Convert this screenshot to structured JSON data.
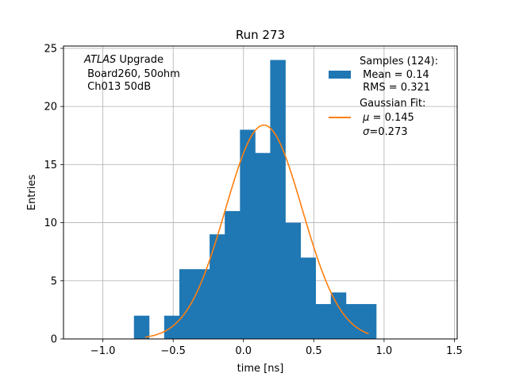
{
  "chart_data": {
    "type": "bar",
    "title": "Run 273",
    "xlabel": "time [ns]",
    "ylabel": "Entries",
    "xlim": [
      -1.28,
      1.52
    ],
    "ylim": [
      0,
      25.2
    ],
    "grid": true,
    "xticks": [
      -1.0,
      -0.5,
      0.0,
      0.5,
      1.0,
      1.5
    ],
    "xtick_labels": [
      "−1.0",
      "−0.5",
      "0.0",
      "0.5",
      "1.0",
      "1.5"
    ],
    "yticks": [
      0,
      5,
      10,
      15,
      20,
      25
    ],
    "ytick_labels": [
      "0",
      "5",
      "10",
      "15",
      "20",
      "25"
    ],
    "bin_width": 0.1077,
    "bins": [
      {
        "left": -0.779,
        "count": 2
      },
      {
        "left": -0.564,
        "count": 2
      },
      {
        "left": -0.456,
        "count": 6
      },
      {
        "left": -0.348,
        "count": 6
      },
      {
        "left": -0.241,
        "count": 9
      },
      {
        "left": -0.133,
        "count": 11
      },
      {
        "left": -0.025,
        "count": 18
      },
      {
        "left": 0.082,
        "count": 16
      },
      {
        "left": 0.19,
        "count": 24
      },
      {
        "left": 0.298,
        "count": 10
      },
      {
        "left": 0.405,
        "count": 7
      },
      {
        "left": 0.513,
        "count": 3
      },
      {
        "left": 0.621,
        "count": 4
      },
      {
        "left": 0.728,
        "count": 3
      },
      {
        "left": 0.836,
        "count": 3
      }
    ],
    "fit": {
      "type": "gaussian",
      "mu": 0.145,
      "sigma": 0.273,
      "amplitude": 18.4,
      "xrange": [
        -0.7,
        0.89
      ]
    },
    "colors": {
      "bars": "#1f77b4",
      "fit": "#ff7f0e",
      "grid": "#b0b0b0"
    },
    "annotation": {
      "italic": "ATLAS",
      "line1_rest": " Upgrade",
      "line2": " Board260, 50ohm",
      "line3": " Ch013 50dB"
    },
    "legend": {
      "placement": "upper right",
      "samples_title": "Samples (124):",
      "samples_mean": " Mean = 0.14",
      "samples_rms": " RMS = 0.321",
      "fit_title": "Gaussian Fit:",
      "fit_mu_symbol": "μ",
      "fit_mu_text": " = 0.145",
      "fit_sigma_symbol": "σ",
      "fit_sigma_text": "=0.273"
    }
  }
}
